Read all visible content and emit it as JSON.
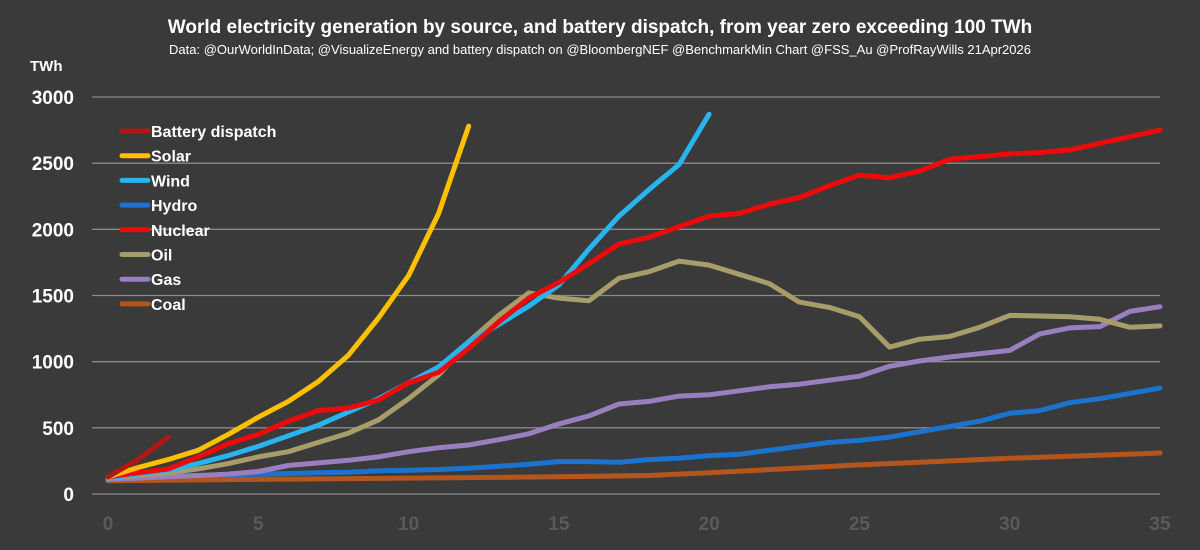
{
  "chart_data": {
    "type": "line",
    "title": "World electricity generation by source, and battery dispatch, from year zero exceeding 100 TWh",
    "subtitle": "Data: @OurWorldInData; @VisualizeEnergy and battery dispatch on @BloombergNEF @BenchmarkMin Chart @FSS_Au @ProfRayWills  21Apr2026",
    "ylabel": "TWh",
    "xlabel": "",
    "xlim": [
      0,
      35
    ],
    "ylim": [
      0,
      3000
    ],
    "xticks": [
      "0",
      "5",
      "10",
      "15",
      "20",
      "25",
      "30",
      "35"
    ],
    "yticks": [
      "0",
      "500",
      "1000",
      "1500",
      "2000",
      "2500",
      "3000"
    ],
    "grid": true,
    "legend_position": "top-left",
    "series": [
      {
        "name": "Battery dispatch",
        "color": "#b01818",
        "x": [
          0,
          1,
          2
        ],
        "y": [
          130,
          260,
          430
        ]
      },
      {
        "name": "Solar",
        "color": "#ffc000",
        "x": [
          0,
          1,
          2,
          3,
          4,
          5,
          6,
          7,
          8,
          9,
          10,
          11,
          12
        ],
        "y": [
          130,
          200,
          260,
          330,
          450,
          580,
          700,
          850,
          1050,
          1330,
          1650,
          2120,
          2780
        ]
      },
      {
        "name": "Wind",
        "color": "#28b4ef",
        "x": [
          0,
          1,
          2,
          3,
          4,
          5,
          6,
          7,
          8,
          9,
          10,
          11,
          12,
          13,
          14,
          15,
          16,
          17,
          18,
          19,
          20
        ],
        "y": [
          120,
          150,
          180,
          230,
          290,
          360,
          440,
          520,
          620,
          720,
          840,
          960,
          1150,
          1280,
          1420,
          1580,
          1850,
          2100,
          2300,
          2490,
          2870
        ]
      },
      {
        "name": "Hydro",
        "color": "#1a73cf",
        "x": [
          0,
          1,
          2,
          3,
          4,
          5,
          6,
          7,
          8,
          9,
          10,
          11,
          12,
          13,
          14,
          15,
          16,
          17,
          18,
          19,
          20,
          21,
          22,
          23,
          24,
          25,
          26,
          27,
          28,
          29,
          30,
          31,
          32,
          33,
          34,
          35
        ],
        "y": [
          120,
          130,
          135,
          140,
          145,
          150,
          155,
          160,
          165,
          175,
          180,
          185,
          195,
          210,
          225,
          245,
          245,
          240,
          260,
          270,
          290,
          300,
          330,
          360,
          390,
          405,
          430,
          470,
          510,
          550,
          610,
          630,
          690,
          720,
          760,
          800
        ]
      },
      {
        "name": "Nuclear",
        "color": "#ee0a0a",
        "x": [
          0,
          1,
          2,
          3,
          4,
          5,
          6,
          7,
          8,
          9,
          10,
          11,
          12,
          13,
          14,
          15,
          16,
          17,
          18,
          19,
          20,
          21,
          22,
          23,
          24,
          25,
          26,
          27,
          28,
          29,
          30,
          31,
          32,
          33,
          34,
          35
        ],
        "y": [
          130,
          160,
          190,
          280,
          380,
          450,
          550,
          630,
          650,
          710,
          840,
          920,
          1100,
          1300,
          1480,
          1600,
          1740,
          1890,
          1940,
          2020,
          2100,
          2120,
          2190,
          2240,
          2330,
          2410,
          2390,
          2440,
          2530,
          2550,
          2570,
          2580,
          2600,
          2650,
          2700,
          2750
        ]
      },
      {
        "name": "Oil",
        "color": "#a79d6b",
        "x": [
          0,
          1,
          2,
          3,
          4,
          5,
          6,
          7,
          8,
          9,
          10,
          11,
          12,
          13,
          14,
          15,
          16,
          17,
          18,
          19,
          20,
          21,
          22,
          23,
          24,
          25,
          26,
          27,
          28,
          29,
          30,
          31,
          32,
          33,
          34,
          35
        ],
        "y": [
          120,
          140,
          160,
          190,
          230,
          280,
          320,
          390,
          460,
          560,
          720,
          900,
          1150,
          1350,
          1520,
          1480,
          1460,
          1630,
          1680,
          1760,
          1730,
          1660,
          1590,
          1450,
          1410,
          1340,
          1110,
          1170,
          1190,
          1260,
          1350,
          1345,
          1340,
          1320,
          1260,
          1270
        ]
      },
      {
        "name": "Gas",
        "color": "#9a7fc0",
        "x": [
          0,
          1,
          2,
          3,
          4,
          5,
          6,
          7,
          8,
          9,
          10,
          11,
          12,
          13,
          14,
          15,
          16,
          17,
          18,
          19,
          20,
          21,
          22,
          23,
          24,
          25,
          26,
          27,
          28,
          29,
          30,
          31,
          32,
          33,
          34,
          35
        ],
        "y": [
          110,
          120,
          130,
          140,
          150,
          170,
          215,
          235,
          255,
          280,
          320,
          350,
          370,
          410,
          455,
          530,
          590,
          680,
          700,
          740,
          750,
          780,
          810,
          830,
          860,
          890,
          965,
          1005,
          1035,
          1060,
          1085,
          1210,
          1255,
          1265,
          1380,
          1415
        ]
      },
      {
        "name": "Coal",
        "color": "#b4561c",
        "x": [
          0,
          5,
          10,
          15,
          18,
          20,
          25,
          30,
          35
        ],
        "y": [
          100,
          110,
          120,
          130,
          140,
          160,
          220,
          270,
          310
        ]
      }
    ]
  }
}
